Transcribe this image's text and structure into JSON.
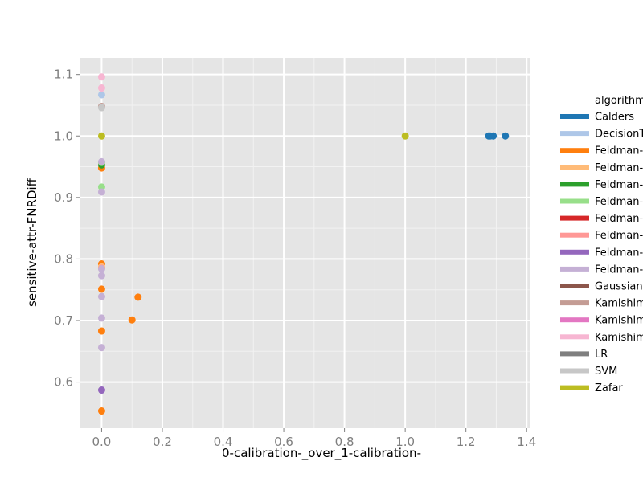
{
  "chart_data": {
    "type": "scatter",
    "title": "",
    "xlabel": "0-calibration-_over_1-calibration-",
    "ylabel": "sensitive-attr-FNRDiff",
    "xlim": [
      -0.07,
      1.41
    ],
    "ylim": [
      0.525,
      1.127
    ],
    "x_ticks": [
      0.0,
      0.2,
      0.4,
      0.6,
      0.8,
      1.0,
      1.2,
      1.4
    ],
    "x_tick_labels": [
      "0.0",
      "0.2",
      "0.4",
      "0.6",
      "0.8",
      "1.0",
      "1.2",
      "1.4"
    ],
    "y_ticks": [
      0.6,
      0.7,
      0.8,
      0.9,
      1.0,
      1.1
    ],
    "y_tick_labels": [
      "0.6",
      "0.7",
      "0.8",
      "0.9",
      "1.0",
      "1.1"
    ],
    "grid": true,
    "legend": {
      "title": "algorithm",
      "placement": "right",
      "entries": [
        {
          "label": "Calders",
          "color": "#1f77b4"
        },
        {
          "label": "DecisionTree",
          "color": "#aec7e8"
        },
        {
          "label": "Feldman-DecisionTree",
          "color": "#ff7f0e"
        },
        {
          "label": "Feldman-DecisionTree",
          "color": "#ffbb78"
        },
        {
          "label": "Feldman-GaussianNB",
          "color": "#2ca02c"
        },
        {
          "label": "Feldman-GaussianNB",
          "color": "#98df8a"
        },
        {
          "label": "Feldman-LR",
          "color": "#d62728"
        },
        {
          "label": "Feldman-LR",
          "color": "#ff9896"
        },
        {
          "label": "Feldman-SVM",
          "color": "#9467bd"
        },
        {
          "label": "Feldman-SVM",
          "color": "#c5b0d5"
        },
        {
          "label": "GaussianNB",
          "color": "#8c564b"
        },
        {
          "label": "Kamishima",
          "color": "#c49c94"
        },
        {
          "label": "Kamishima",
          "color": "#e377c2"
        },
        {
          "label": "Kamishima",
          "color": "#f7b6d2"
        },
        {
          "label": "LR",
          "color": "#7f7f7f"
        },
        {
          "label": "SVM",
          "color": "#c7c7c7"
        },
        {
          "label": "Zafar",
          "color": "#bcbd22"
        }
      ]
    },
    "series": [
      {
        "color": "#1f77b4",
        "points": [
          [
            1.275,
            1.0
          ],
          [
            1.28,
            1.0
          ],
          [
            1.29,
            1.0
          ],
          [
            1.33,
            1.0
          ]
        ]
      },
      {
        "color": "#aec7e8",
        "points": [
          [
            0.0,
            1.067
          ]
        ]
      },
      {
        "color": "#ff7f0e",
        "points": [
          [
            0.0,
            0.553
          ],
          [
            0.0,
            0.683
          ],
          [
            0.0,
            0.751
          ],
          [
            0.0,
            0.792
          ],
          [
            0.0,
            0.948
          ],
          [
            0.1,
            0.701
          ],
          [
            0.12,
            0.738
          ]
        ]
      },
      {
        "color": "#ffbb78",
        "points": [
          [
            0.0,
            0.787
          ]
        ]
      },
      {
        "color": "#2ca02c",
        "points": [
          [
            0.0,
            0.953
          ]
        ]
      },
      {
        "color": "#98df8a",
        "points": [
          [
            0.0,
            0.917
          ],
          [
            0.0,
            0.957
          ]
        ]
      },
      {
        "color": "#d62728",
        "points": []
      },
      {
        "color": "#ff9896",
        "points": [
          [
            0.0,
            0.785
          ]
        ]
      },
      {
        "color": "#9467bd",
        "points": [
          [
            0.0,
            0.587
          ]
        ]
      },
      {
        "color": "#c5b0d5",
        "points": [
          [
            0.0,
            0.656
          ],
          [
            0.0,
            0.704
          ],
          [
            0.0,
            0.739
          ],
          [
            0.0,
            0.773
          ],
          [
            0.0,
            0.784
          ],
          [
            0.0,
            0.909
          ],
          [
            0.0,
            0.958
          ]
        ]
      },
      {
        "color": "#8c564b",
        "points": []
      },
      {
        "color": "#c49c94",
        "points": [
          [
            0.0,
            1.048
          ]
        ]
      },
      {
        "color": "#e377c2",
        "points": []
      },
      {
        "color": "#f7b6d2",
        "points": [
          [
            0.0,
            1.078
          ],
          [
            0.0,
            1.096
          ]
        ]
      },
      {
        "color": "#7f7f7f",
        "points": []
      },
      {
        "color": "#c7c7c7",
        "points": [
          [
            0.0,
            1.046
          ]
        ]
      },
      {
        "color": "#bcbd22",
        "points": [
          [
            0.0,
            1.0
          ],
          [
            1.0,
            1.0
          ]
        ]
      }
    ]
  }
}
